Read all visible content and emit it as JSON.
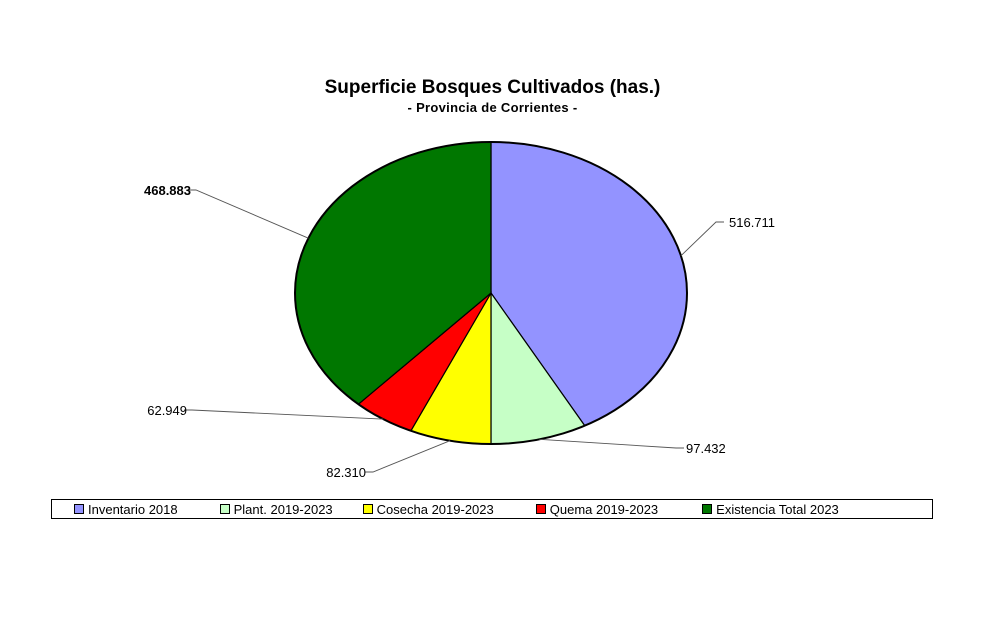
{
  "chart_data": {
    "type": "pie",
    "title": "Superficie Bosques Cultivados (has.)",
    "subtitle": "- Provincia de Corrientes -",
    "slices": [
      {
        "label": "Inventario 2018",
        "value": 516711,
        "display": "516.711",
        "color": "#9393ff"
      },
      {
        "label": "Plant. 2019-2023",
        "value": 97432,
        "display": "97.432",
        "color": "#c6ffc6"
      },
      {
        "label": "Cosecha 2019-2023",
        "value": 82310,
        "display": "82.310",
        "color": "#ffff00"
      },
      {
        "label": "Quema 2019-2023",
        "value": 62949,
        "display": "62.949",
        "color": "#ff0000"
      },
      {
        "label": "Existencia Total 2023",
        "value": 468883,
        "display": "468.883",
        "color": "#007700"
      }
    ],
    "legend_position": "bottom"
  }
}
